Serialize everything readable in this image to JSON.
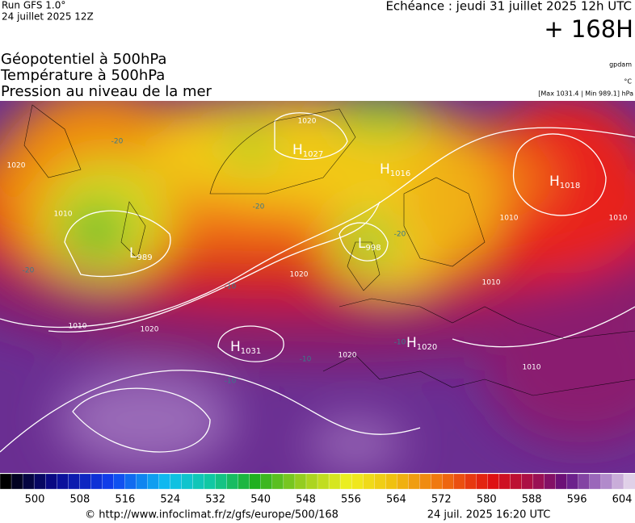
{
  "header": {
    "run": "Run GFS 1.0°",
    "run_date": "24 juillet 2025 12Z",
    "valid": "Echéance : jeudi 31 juillet 2025 12h UTC",
    "lead": "+ 168H"
  },
  "titles": [
    "Géopotentiel à 500hPa",
    "Température à 500hPa",
    "Pression au niveau de la mer"
  ],
  "units": {
    "geopotential": "gpdam",
    "temperature": "°C",
    "pressure": "[Max 1031.4 | Min 989.1] hPa"
  },
  "centers": [
    {
      "letter": "H",
      "value": "1027"
    },
    {
      "letter": "H",
      "value": "1016"
    },
    {
      "letter": "H",
      "value": "1018"
    },
    {
      "letter": "L",
      "value": "998"
    },
    {
      "letter": "H",
      "value": "1031"
    },
    {
      "letter": "H",
      "value": "1020"
    },
    {
      "letter": "L",
      "value": "989"
    }
  ],
  "isobar_labels": [
    "1010",
    "1020",
    "1010",
    "1020",
    "1020",
    "1010",
    "1010",
    "1020",
    "1010",
    "1010",
    "1020"
  ],
  "temperature_labels": [
    "-20",
    "-20",
    "-20",
    "-20",
    "-10",
    "-10",
    "-10",
    "-10"
  ],
  "colorbar_labels": [
    500,
    508,
    516,
    524,
    532,
    540,
    548,
    556,
    564,
    572,
    580,
    588,
    596,
    604
  ],
  "footer": {
    "source": "© http://www.infoclimat.fr/z/gfs/europe/500/168",
    "generated": "24 juil. 2025 16:20 UTC"
  }
}
